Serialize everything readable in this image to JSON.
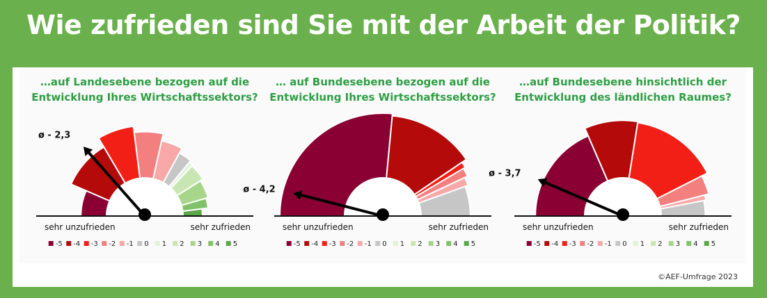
{
  "title": "Wie zufrieden sind Sie mit der Arbeit der Politik?",
  "scale_labels": {
    "left": "sehr unzufrieden",
    "right": "sehr zufrieden"
  },
  "legend": {
    "labels": [
      "-5",
      "-4",
      "-3",
      "-2",
      "-1",
      "0",
      "1",
      "2",
      "3",
      "4",
      "5"
    ],
    "colors": [
      "#8b0033",
      "#b50a0a",
      "#f21f17",
      "#f47f7f",
      "#f9a8a8",
      "#c6c6c6",
      "#e2f2d9",
      "#c8e6b2",
      "#a7d68b",
      "#7fc26a",
      "#5aa84a"
    ]
  },
  "copyright": "©AEF-Umfrage 2023",
  "chart_data": [
    {
      "type": "gauge",
      "title_lines": [
        "…auf Landesebene bezogen auf die",
        "Entwicklung Ihres Wirtschaftssektors?"
      ],
      "mean_label": "ø - 2,3",
      "mean": -2.3,
      "shares": [
        0.13,
        0.2,
        0.13,
        0.11,
        0.09,
        0.06,
        0.02,
        0.08,
        0.09,
        0.05,
        0.04
      ],
      "outer_radii_rel": [
        0.62,
        0.78,
        0.88,
        0.82,
        0.75,
        0.7,
        0.68,
        0.67,
        0.64,
        0.62,
        0.56
      ]
    },
    {
      "type": "gauge",
      "title_lines": [
        "… auf Bundesebene bezogen auf die",
        "Entwicklung Ihres Wirtschaftssektors?"
      ],
      "mean_label": "ø - 4,2",
      "mean": -4.2,
      "shares": [
        0.53,
        0.28,
        0.02,
        0.03,
        0.03,
        0.11,
        0,
        0,
        0,
        0,
        0
      ],
      "outer_radii_rel": [
        1.0,
        0.98,
        0.93,
        0.91,
        0.88,
        0.85,
        0.7,
        0.7,
        0.7,
        0.7,
        0.7
      ]
    },
    {
      "type": "gauge",
      "title_lines": [
        "…auf Bundesebene hinsichtlich der",
        "Entwicklung des ländlichen Raumes?"
      ],
      "mean_label": "ø - 3,7",
      "mean": -3.7,
      "shares": [
        0.37,
        0.18,
        0.3,
        0.07,
        0.02,
        0.06,
        0,
        0,
        0,
        0,
        0
      ],
      "outer_radii_rel": [
        0.85,
        0.93,
        0.92,
        0.86,
        0.82,
        0.8,
        0.7,
        0.7,
        0.7,
        0.7,
        0.7
      ]
    }
  ]
}
